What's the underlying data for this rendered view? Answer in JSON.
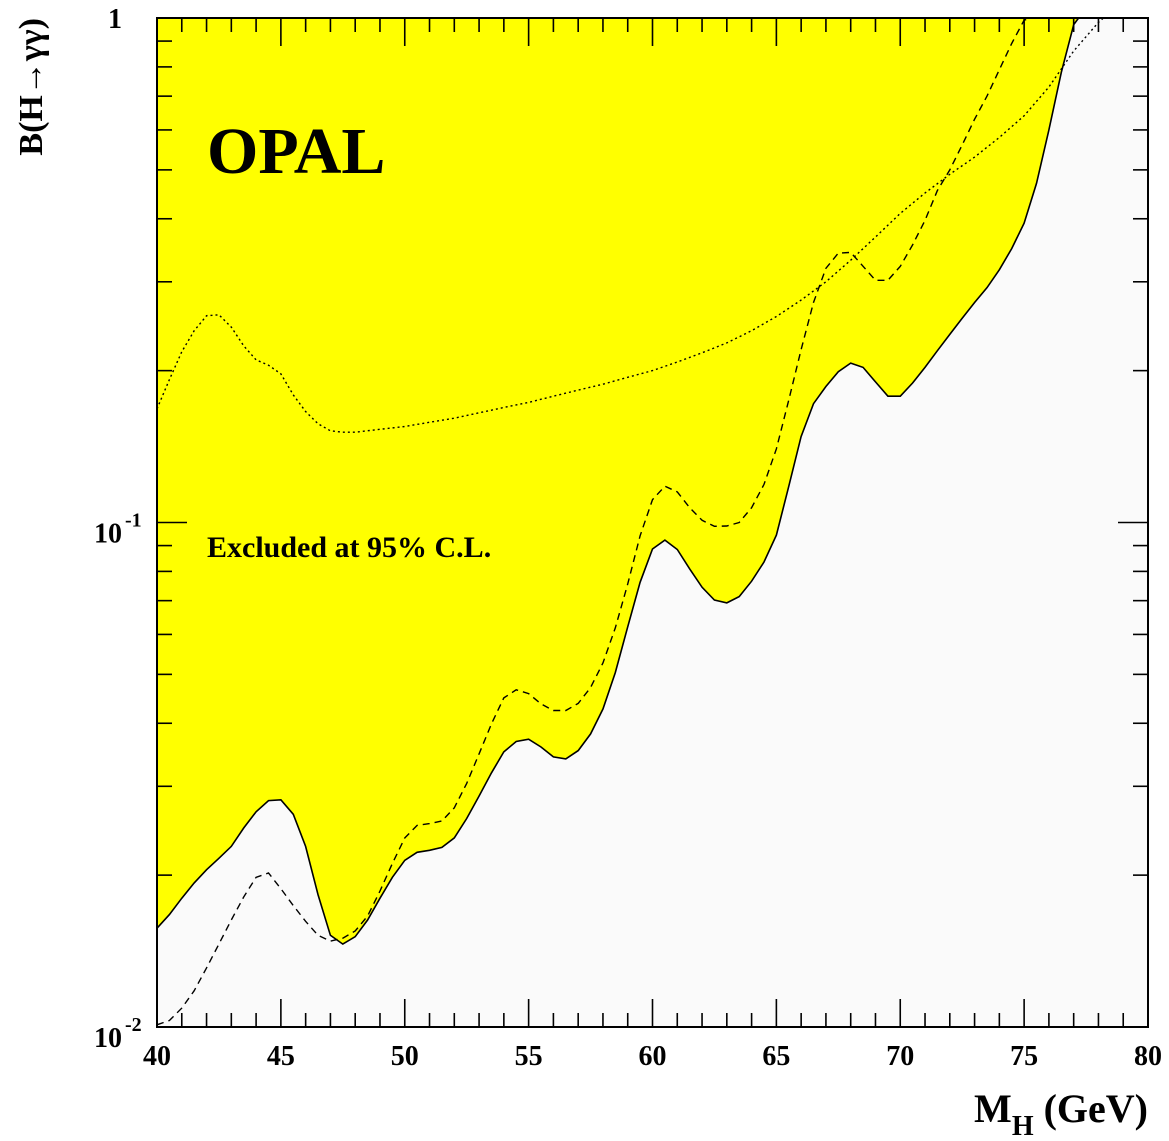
{
  "chart_data": {
    "type": "area",
    "experiment_label": "OPAL",
    "annotation": "Excluded at 95% C.L.",
    "xlabel": {
      "main": "M",
      "sub": "H",
      "unit": " (GeV)"
    },
    "ylabel": "B(H→γγ)",
    "xlim": [
      40,
      80
    ],
    "ylim": [
      0.01,
      1
    ],
    "y_scale": "log",
    "grid": false,
    "x_ticks": [
      {
        "value": 40,
        "label": "40"
      },
      {
        "value": 45,
        "label": "45"
      },
      {
        "value": 50,
        "label": "50"
      },
      {
        "value": 55,
        "label": "55"
      },
      {
        "value": 60,
        "label": "60"
      },
      {
        "value": 65,
        "label": "65"
      },
      {
        "value": 70,
        "label": "70"
      },
      {
        "value": 75,
        "label": "75"
      },
      {
        "value": 80,
        "label": "80"
      }
    ],
    "y_ticks": [
      {
        "value": 0.01,
        "base": "10",
        "exp": "-2"
      },
      {
        "value": 0.1,
        "base": "10",
        "exp": "-1"
      },
      {
        "value": 1,
        "base": "1",
        "exp": ""
      }
    ],
    "colors": {
      "excluded_fill": "#ffff00",
      "allowed_fill": "#fafafa",
      "line": "#000000"
    },
    "series": [
      {
        "style": "solid",
        "role": "observed limit (boundary of excluded region)",
        "x": [
          40,
          40.5,
          41,
          41.5,
          42,
          42.5,
          43,
          43.5,
          44,
          44.5,
          45,
          45.5,
          46,
          46.5,
          47,
          47.5,
          48,
          48.5,
          49,
          49.5,
          50,
          50.5,
          51,
          51.5,
          52,
          52.5,
          53,
          53.5,
          54,
          54.5,
          55,
          55.5,
          56,
          56.5,
          57,
          57.5,
          58,
          58.5,
          59,
          59.5,
          60,
          60.5,
          61,
          61.5,
          62,
          62.5,
          63,
          63.5,
          64,
          64.5,
          65,
          65.5,
          66,
          66.5,
          67,
          67.5,
          68,
          68.5,
          69,
          69.5,
          70,
          70.5,
          71,
          71.5,
          72,
          72.5,
          73,
          73.5,
          74,
          74.5,
          75,
          75.5,
          76,
          76.5,
          77,
          77.2
        ],
        "y": [
          0.0157,
          0.0167,
          0.018,
          0.0193,
          0.0205,
          0.0216,
          0.0228,
          0.0248,
          0.0267,
          0.0281,
          0.0282,
          0.0264,
          0.0228,
          0.0183,
          0.0152,
          0.0146,
          0.0151,
          0.0163,
          0.018,
          0.0198,
          0.0214,
          0.0222,
          0.0224,
          0.0227,
          0.0237,
          0.0259,
          0.0287,
          0.0319,
          0.0351,
          0.0368,
          0.0372,
          0.0359,
          0.0343,
          0.034,
          0.0353,
          0.0381,
          0.0427,
          0.0504,
          0.0621,
          0.0761,
          0.0886,
          0.0923,
          0.0884,
          0.0809,
          0.0744,
          0.0702,
          0.0693,
          0.0713,
          0.0765,
          0.0835,
          0.0944,
          0.118,
          0.148,
          0.172,
          0.186,
          0.199,
          0.207,
          0.203,
          0.19,
          0.178,
          0.178,
          0.189,
          0.203,
          0.219,
          0.236,
          0.254,
          0.273,
          0.292,
          0.317,
          0.349,
          0.392,
          0.47,
          0.6,
          0.78,
          0.97,
          1.0
        ]
      },
      {
        "style": "dashed",
        "role": "expected",
        "x": [
          40,
          40.5,
          41,
          41.5,
          42,
          42.5,
          43,
          43.5,
          44,
          44.5,
          45,
          45.5,
          46,
          46.5,
          47,
          47.5,
          48,
          48.5,
          49,
          49.5,
          50,
          50.5,
          51,
          51.5,
          52,
          52.5,
          53,
          53.5,
          54,
          54.5,
          55,
          55.5,
          56,
          56.5,
          57,
          57.5,
          58,
          58.5,
          59,
          59.5,
          60,
          60.5,
          61,
          61.5,
          62,
          62.5,
          63,
          63.5,
          64,
          64.5,
          65,
          65.5,
          66,
          66.5,
          67,
          67.5,
          68,
          68.5,
          69,
          69.5,
          70,
          70.5,
          71,
          71.5,
          72,
          72.5,
          73,
          73.5,
          74,
          74.5,
          75,
          75.3
        ],
        "y": [
          0.0101,
          0.0103,
          0.0109,
          0.0118,
          0.0131,
          0.0146,
          0.0163,
          0.0181,
          0.0198,
          0.0202,
          0.0188,
          0.0174,
          0.0162,
          0.0152,
          0.0148,
          0.015,
          0.0155,
          0.0166,
          0.0186,
          0.0211,
          0.0237,
          0.0251,
          0.0253,
          0.0256,
          0.0272,
          0.0304,
          0.0348,
          0.0399,
          0.0449,
          0.0466,
          0.0458,
          0.0437,
          0.0424,
          0.0424,
          0.0438,
          0.0471,
          0.0527,
          0.0618,
          0.0755,
          0.0941,
          0.111,
          0.118,
          0.115,
          0.107,
          0.101,
          0.0983,
          0.0984,
          0.1,
          0.107,
          0.119,
          0.14,
          0.175,
          0.22,
          0.273,
          0.319,
          0.342,
          0.343,
          0.322,
          0.302,
          0.302,
          0.322,
          0.355,
          0.397,
          0.455,
          0.5,
          0.56,
          0.63,
          0.7,
          0.79,
          0.89,
          0.99,
          1.0
        ]
      },
      {
        "style": "dotted",
        "role": "reference curve",
        "x": [
          40,
          40.5,
          41,
          41.5,
          42,
          42.5,
          43,
          43.5,
          44,
          44.5,
          45,
          45.5,
          46,
          46.5,
          47,
          47.5,
          48,
          49,
          50,
          51,
          52,
          53,
          54,
          55,
          56,
          57,
          58,
          59,
          60,
          61,
          62,
          63,
          64,
          65,
          66,
          67,
          68,
          69,
          70,
          71,
          72,
          73,
          74,
          75,
          76,
          77,
          78,
          78.2
        ],
        "y": [
          0.168,
          0.192,
          0.218,
          0.24,
          0.257,
          0.258,
          0.244,
          0.224,
          0.21,
          0.205,
          0.197,
          0.179,
          0.166,
          0.157,
          0.152,
          0.151,
          0.151,
          0.153,
          0.155,
          0.158,
          0.161,
          0.165,
          0.169,
          0.173,
          0.178,
          0.183,
          0.188,
          0.194,
          0.2,
          0.208,
          0.217,
          0.227,
          0.24,
          0.256,
          0.276,
          0.3,
          0.331,
          0.368,
          0.41,
          0.45,
          0.49,
          0.53,
          0.58,
          0.64,
          0.73,
          0.86,
          0.98,
          1.0
        ]
      }
    ]
  }
}
